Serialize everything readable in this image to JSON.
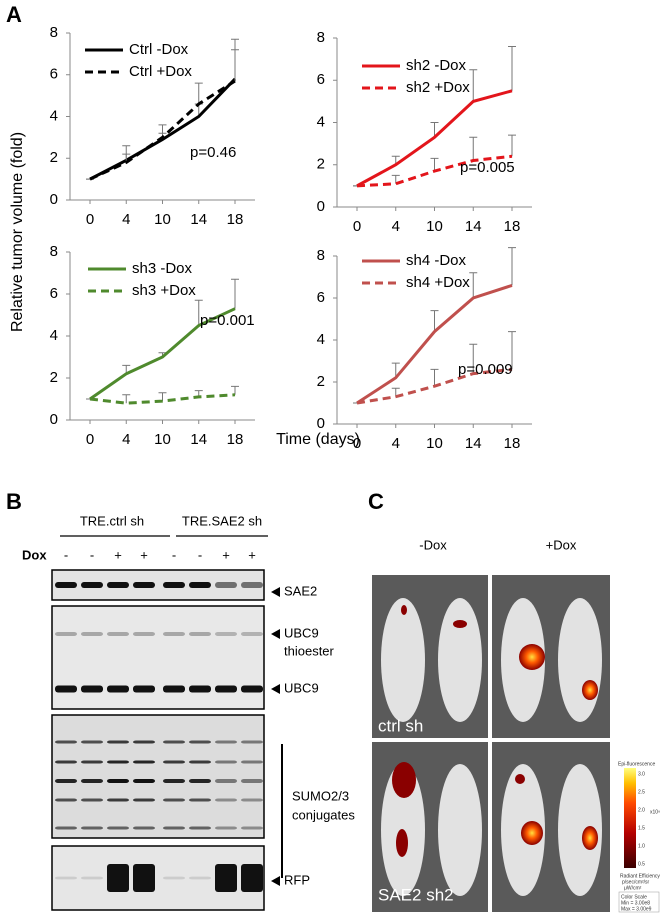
{
  "panel_labels": [
    "A",
    "B",
    "C"
  ],
  "shared_axes": {
    "ylabel": "Relative tumor volume (fold)",
    "xlabel": "Time (days)"
  },
  "chart_data": [
    {
      "type": "line",
      "categories": [
        "0",
        "4",
        "10",
        "14",
        "18"
      ],
      "ylim": [
        0,
        8
      ],
      "yticks": [
        0,
        2,
        4,
        6,
        8
      ],
      "annotation": "p=0.46",
      "series": [
        {
          "name": "Ctrl -Dox",
          "color": "#000000",
          "dash": false,
          "values": [
            1,
            1.9,
            2.9,
            4.0,
            5.8
          ],
          "errors": [
            0,
            0.3,
            0.3,
            0.6,
            1.9
          ]
        },
        {
          "name": "Ctrl +Dox",
          "color": "#000000",
          "dash": true,
          "values": [
            1,
            1.8,
            3.0,
            4.6,
            5.7
          ],
          "errors": [
            0,
            0.8,
            0.6,
            1.0,
            1.5
          ]
        }
      ]
    },
    {
      "type": "line",
      "categories": [
        "0",
        "4",
        "10",
        "14",
        "18"
      ],
      "ylim": [
        0,
        8
      ],
      "yticks": [
        0,
        2,
        4,
        6,
        8
      ],
      "annotation": "p=0.005",
      "series": [
        {
          "name": "sh2 -Dox",
          "color": "#e3151b",
          "dash": false,
          "values": [
            1,
            2.0,
            3.3,
            5.0,
            5.5
          ],
          "errors": [
            0,
            0.4,
            0.7,
            1.5,
            2.1
          ]
        },
        {
          "name": "sh2 +Dox",
          "color": "#e3151b",
          "dash": true,
          "values": [
            1,
            1.1,
            1.7,
            2.2,
            2.4
          ],
          "errors": [
            0,
            0.4,
            0.6,
            1.1,
            1.0
          ]
        }
      ]
    },
    {
      "type": "line",
      "categories": [
        "0",
        "4",
        "10",
        "14",
        "18"
      ],
      "ylim": [
        0,
        8
      ],
      "yticks": [
        0,
        2,
        4,
        6,
        8
      ],
      "annotation": "p=0.001",
      "series": [
        {
          "name": "sh3 -Dox",
          "color": "#4f8a2d",
          "dash": false,
          "values": [
            1,
            2.2,
            3.0,
            4.5,
            5.3
          ],
          "errors": [
            0,
            0.4,
            0.2,
            1.2,
            1.4
          ]
        },
        {
          "name": "sh3 +Dox",
          "color": "#4f8a2d",
          "dash": true,
          "values": [
            1,
            0.8,
            0.9,
            1.1,
            1.2
          ],
          "errors": [
            0,
            0.4,
            0.4,
            0.3,
            0.4
          ]
        }
      ]
    },
    {
      "type": "line",
      "categories": [
        "0",
        "4",
        "10",
        "14",
        "18"
      ],
      "ylim": [
        0,
        8
      ],
      "yticks": [
        0,
        2,
        4,
        6,
        8
      ],
      "annotation": "p=0.009",
      "series": [
        {
          "name": "sh4 -Dox",
          "color": "#c0504d",
          "dash": false,
          "values": [
            1,
            2.2,
            4.4,
            6.0,
            6.6
          ],
          "errors": [
            0,
            0.7,
            1.0,
            1.2,
            1.8
          ]
        },
        {
          "name": "sh4 +Dox",
          "color": "#c0504d",
          "dash": true,
          "values": [
            1,
            1.3,
            1.8,
            2.4,
            2.6
          ],
          "errors": [
            0,
            0.4,
            0.8,
            1.4,
            1.8
          ]
        }
      ]
    }
  ],
  "blot": {
    "groups": [
      "TRE.ctrl sh",
      "TRE.SAE2 sh"
    ],
    "dox_label": "Dox",
    "dox_signs": [
      "-",
      "-",
      "+",
      "+",
      "-",
      "-",
      "+",
      "+"
    ],
    "bands": [
      [
        "SAE2"
      ],
      [
        "UBC9",
        "thioester"
      ],
      [
        "UBC9"
      ],
      [
        "SUMO2/3",
        "conjugates"
      ],
      [
        "RFP"
      ]
    ]
  },
  "imaging": {
    "columns": [
      "-Dox",
      "+Dox"
    ],
    "rows": [
      "ctrl sh",
      "SAE2 sh2"
    ],
    "scale": {
      "title": "Epi-fluorescence",
      "ticks": [
        "3.0",
        "2.5",
        "2.0",
        "1.5",
        "1.0",
        "0.5"
      ],
      "multiplier": "x10⁹",
      "unit": [
        "Radiant Efficiency",
        "p/sec/cm²/sr",
        "μW/cm²"
      ],
      "range": [
        "Color Scale",
        "Min = 3.00e8",
        "Max = 3.00e9"
      ]
    }
  }
}
